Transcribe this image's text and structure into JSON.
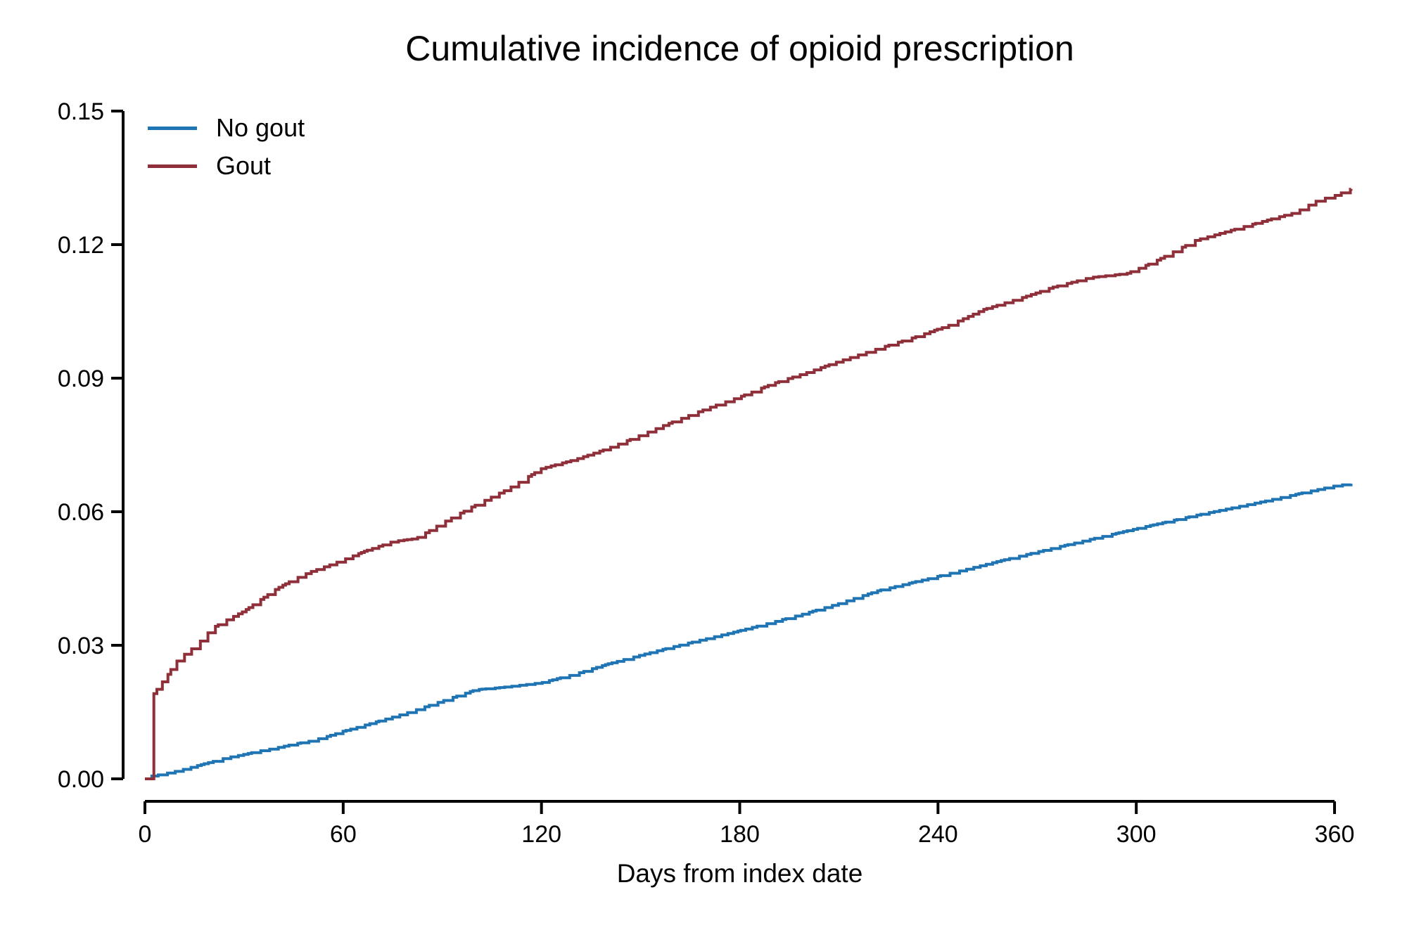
{
  "figure": {
    "background": "#ffffff",
    "axis_color": "#000000",
    "text_color": "#000000"
  },
  "chart_data": {
    "type": "line",
    "subtype": "cumulative-incidence-step",
    "title": "Cumulative incidence of opioid prescription",
    "xlabel": "Days from index date",
    "ylabel": "",
    "xlim": [
      0,
      360
    ],
    "ylim": [
      0,
      0.15
    ],
    "x_extends_to": 365,
    "xticks": [
      0,
      60,
      120,
      180,
      240,
      300,
      360
    ],
    "xticklabels": [
      "0",
      "60",
      "120",
      "180",
      "240",
      "300",
      "360"
    ],
    "yticks": [
      0,
      0.03,
      0.06,
      0.09,
      0.12,
      0.15
    ],
    "yticklabels": [
      "0.00",
      "0.03",
      "0.06",
      "0.09",
      "0.12",
      "0.15"
    ],
    "grid": false,
    "legend_position": "top-left-inside",
    "series": [
      {
        "name": "No gout",
        "color": "#1f74b4",
        "points": [
          [
            0,
            0
          ],
          [
            1,
            0.0005
          ],
          [
            5,
            0.001
          ],
          [
            10,
            0.0018
          ],
          [
            15,
            0.0028
          ],
          [
            20,
            0.0038
          ],
          [
            25,
            0.0048
          ],
          [
            30,
            0.0055
          ],
          [
            35,
            0.0063
          ],
          [
            40,
            0.007
          ],
          [
            45,
            0.0078
          ],
          [
            50,
            0.0085
          ],
          [
            55,
            0.0095
          ],
          [
            60,
            0.0107
          ],
          [
            70,
            0.0128
          ],
          [
            80,
            0.015
          ],
          [
            90,
            0.0175
          ],
          [
            100,
            0.02
          ],
          [
            110,
            0.0207
          ],
          [
            120,
            0.0216
          ],
          [
            130,
            0.0235
          ],
          [
            140,
            0.0258
          ],
          [
            150,
            0.0278
          ],
          [
            160,
            0.0297
          ],
          [
            170,
            0.0315
          ],
          [
            180,
            0.0333
          ],
          [
            190,
            0.0352
          ],
          [
            200,
            0.0372
          ],
          [
            210,
            0.0394
          ],
          [
            222,
            0.0423
          ],
          [
            240,
            0.0455
          ],
          [
            260,
            0.0492
          ],
          [
            286,
            0.0538
          ],
          [
            300,
            0.0562
          ],
          [
            318,
            0.0592
          ],
          [
            339,
            0.0624
          ],
          [
            350,
            0.0642
          ],
          [
            360,
            0.0658
          ],
          [
            365,
            0.0663
          ]
        ]
      },
      {
        "name": "Gout",
        "color": "#8e2f39",
        "points": [
          [
            0,
            0
          ],
          [
            1,
            0.017
          ],
          [
            3,
            0.0195
          ],
          [
            5,
            0.0215
          ],
          [
            7,
            0.0235
          ],
          [
            9,
            0.026
          ],
          [
            12,
            0.028
          ],
          [
            15,
            0.0297
          ],
          [
            18,
            0.0318
          ],
          [
            20,
            0.0337
          ],
          [
            25,
            0.0358
          ],
          [
            30,
            0.0377
          ],
          [
            35,
            0.0403
          ],
          [
            40,
            0.0428
          ],
          [
            45,
            0.0448
          ],
          [
            50,
            0.0465
          ],
          [
            55,
            0.0478
          ],
          [
            60,
            0.0492
          ],
          [
            67,
            0.0513
          ],
          [
            75,
            0.0533
          ],
          [
            82,
            0.054
          ],
          [
            90,
            0.0575
          ],
          [
            100,
            0.0615
          ],
          [
            110,
            0.0652
          ],
          [
            120,
            0.0697
          ],
          [
            130,
            0.0717
          ],
          [
            140,
            0.0742
          ],
          [
            150,
            0.0772
          ],
          [
            158,
            0.0797
          ],
          [
            170,
            0.0832
          ],
          [
            180,
            0.0858
          ],
          [
            190,
            0.0888
          ],
          [
            200,
            0.0912
          ],
          [
            210,
            0.0938
          ],
          [
            222,
            0.0967
          ],
          [
            232,
            0.099
          ],
          [
            243,
            0.1018
          ],
          [
            254,
            0.1055
          ],
          [
            265,
            0.108
          ],
          [
            275,
            0.1105
          ],
          [
            286,
            0.1126
          ],
          [
            297,
            0.1135
          ],
          [
            305,
            0.116
          ],
          [
            318,
            0.121
          ],
          [
            330,
            0.1235
          ],
          [
            341,
            0.1258
          ],
          [
            348,
            0.1272
          ],
          [
            355,
            0.13
          ],
          [
            360,
            0.131
          ],
          [
            365,
            0.1325
          ]
        ]
      }
    ]
  }
}
